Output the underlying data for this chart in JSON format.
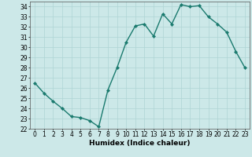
{
  "x": [
    0,
    1,
    2,
    3,
    4,
    5,
    6,
    7,
    8,
    9,
    10,
    11,
    12,
    13,
    14,
    15,
    16,
    17,
    18,
    19,
    20,
    21,
    22,
    23
  ],
  "y": [
    26.5,
    25.5,
    24.7,
    24.0,
    23.2,
    23.1,
    22.8,
    22.2,
    25.8,
    28.0,
    30.5,
    32.1,
    32.3,
    31.1,
    33.3,
    32.3,
    34.2,
    34.0,
    34.1,
    33.0,
    32.3,
    31.5,
    29.6,
    28.0
  ],
  "line_color": "#1a7a6e",
  "marker": "D",
  "marker_size": 2.2,
  "bg_color": "#cce8e8",
  "grid_color": "#afd4d4",
  "xlabel": "Humidex (Indice chaleur)",
  "ylim": [
    22,
    34.5
  ],
  "xlim": [
    -0.5,
    23.5
  ],
  "yticks": [
    22,
    23,
    24,
    25,
    26,
    27,
    28,
    29,
    30,
    31,
    32,
    33,
    34
  ],
  "xtick_labels": [
    "0",
    "1",
    "2",
    "3",
    "4",
    "5",
    "6",
    "7",
    "8",
    "9",
    "10",
    "11",
    "12",
    "13",
    "14",
    "15",
    "16",
    "17",
    "18",
    "19",
    "20",
    "21",
    "22",
    "23"
  ],
  "tick_fontsize": 5.5,
  "xlabel_fontsize": 6.5,
  "linewidth": 1.0
}
